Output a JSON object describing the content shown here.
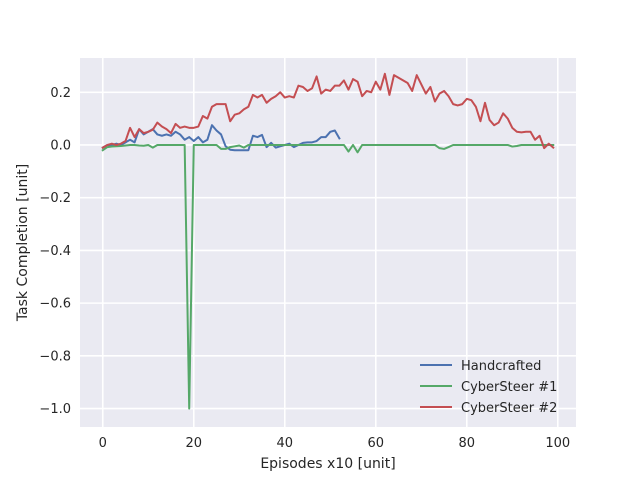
{
  "chart_data": {
    "type": "line",
    "title": "",
    "xlabel": "Episodes x10 [unit]",
    "ylabel": "Task Completion [unit]",
    "xlim": [
      -5,
      104
    ],
    "ylim": [
      -1.07,
      0.33
    ],
    "xticks": [
      0,
      20,
      40,
      60,
      80,
      100
    ],
    "yticks": [
      -1.0,
      -0.8,
      -0.6,
      -0.4,
      -0.2,
      0.0,
      0.2
    ],
    "xtick_labels": [
      "0",
      "20",
      "40",
      "60",
      "80",
      "100"
    ],
    "ytick_labels": [
      "−1.0",
      "−0.8",
      "−0.6",
      "−0.4",
      "−0.2",
      "0.0",
      "0.2"
    ],
    "grid": true,
    "legend_position": "lower-right",
    "series": [
      {
        "name": "Handcrafted",
        "color": "#4c72b0",
        "x": [
          0,
          1,
          2,
          3,
          4,
          5,
          6,
          7,
          8,
          9,
          10,
          11,
          12,
          13,
          14,
          15,
          16,
          17,
          18,
          19,
          20,
          21,
          22,
          23,
          24,
          25,
          26,
          27,
          28,
          29,
          30,
          31,
          32,
          33,
          34,
          35,
          36,
          37,
          38,
          39,
          40,
          41,
          42,
          43,
          44,
          45,
          46,
          47,
          48,
          49,
          50,
          51,
          52
        ],
        "values": [
          -0.01,
          0.0,
          0.0,
          0.005,
          0.0,
          0.01,
          0.02,
          0.01,
          0.06,
          0.04,
          0.05,
          0.06,
          0.04,
          0.035,
          0.04,
          0.035,
          0.05,
          0.04,
          0.02,
          0.03,
          0.015,
          0.03,
          0.01,
          0.02,
          0.075,
          0.055,
          0.04,
          -0.005,
          -0.018,
          -0.02,
          -0.02,
          -0.02,
          -0.02,
          0.035,
          0.03,
          0.038,
          -0.008,
          0.008,
          -0.01,
          -0.005,
          0.0,
          0.005,
          -0.008,
          0.0,
          0.008,
          0.01,
          0.01,
          0.015,
          0.03,
          0.03,
          0.05,
          0.055,
          0.025
        ]
      },
      {
        "name": "CyberSteer #1",
        "color": "#55a868",
        "x": [
          0,
          1,
          2,
          3,
          4,
          5,
          6,
          7,
          8,
          9,
          10,
          11,
          12,
          13,
          14,
          15,
          16,
          17,
          18,
          19,
          20,
          21,
          22,
          23,
          24,
          25,
          26,
          27,
          28,
          29,
          30,
          31,
          32,
          33,
          34,
          35,
          36,
          37,
          38,
          39,
          40,
          41,
          42,
          43,
          44,
          45,
          46,
          47,
          48,
          49,
          50,
          51,
          52,
          53,
          54,
          55,
          56,
          57,
          58,
          59,
          60,
          61,
          62,
          63,
          64,
          65,
          66,
          67,
          68,
          69,
          70,
          71,
          72,
          73,
          74,
          75,
          76,
          77,
          78,
          79,
          80,
          81,
          82,
          83,
          84,
          85,
          86,
          87,
          88,
          89,
          90,
          91,
          92,
          93,
          94,
          95,
          96,
          97,
          98,
          99
        ],
        "values": [
          -0.02,
          -0.008,
          -0.006,
          -0.005,
          -0.004,
          -0.002,
          0.0,
          0.0,
          -0.002,
          -0.003,
          0.0,
          -0.01,
          0.0,
          0.0,
          0.0,
          0.0,
          0.0,
          0.0,
          0.0,
          -1.0,
          0.0,
          0.0,
          0.0,
          0.0,
          0.0,
          0.0,
          -0.015,
          -0.015,
          -0.008,
          -0.005,
          -0.002,
          -0.01,
          0.0,
          0.0,
          0.0,
          0.0,
          0.0,
          0.0,
          0.0,
          0.0,
          0.0,
          0.0,
          0.0,
          0.0,
          0.0,
          0.0,
          0.0,
          0.0,
          0.0,
          0.0,
          0.0,
          0.0,
          0.0,
          0.0,
          -0.025,
          0.0,
          -0.028,
          0.0,
          0.0,
          0.0,
          0.0,
          0.0,
          0.0,
          0.0,
          0.0,
          0.0,
          0.0,
          0.0,
          0.0,
          0.0,
          0.0,
          0.0,
          0.0,
          0.0,
          -0.012,
          -0.015,
          -0.008,
          0.0,
          0.0,
          0.0,
          0.0,
          0.0,
          0.0,
          0.0,
          0.0,
          0.0,
          0.0,
          0.0,
          0.0,
          0.0,
          -0.006,
          -0.004,
          0.0,
          0.0,
          0.0,
          0.0,
          0.0,
          0.0,
          0.0,
          0.0
        ]
      },
      {
        "name": "CyberSteer #2",
        "color": "#c44e52",
        "x": [
          0,
          1,
          2,
          3,
          4,
          5,
          6,
          7,
          8,
          9,
          10,
          11,
          12,
          13,
          14,
          15,
          16,
          17,
          18,
          19,
          20,
          21,
          22,
          23,
          24,
          25,
          26,
          27,
          28,
          29,
          30,
          31,
          32,
          33,
          34,
          35,
          36,
          37,
          38,
          39,
          40,
          41,
          42,
          43,
          44,
          45,
          46,
          47,
          48,
          49,
          50,
          51,
          52,
          53,
          54,
          55,
          56,
          57,
          58,
          59,
          60,
          61,
          62,
          63,
          64,
          65,
          66,
          67,
          68,
          69,
          70,
          71,
          72,
          73,
          74,
          75,
          76,
          77,
          78,
          79,
          80,
          81,
          82,
          83,
          84,
          85,
          86,
          87,
          88,
          89,
          90,
          91,
          92,
          93,
          94,
          95,
          96,
          97,
          98,
          99
        ],
        "values": [
          -0.01,
          0.0,
          0.005,
          0.0,
          0.005,
          0.015,
          0.065,
          0.03,
          0.06,
          0.045,
          0.05,
          0.058,
          0.085,
          0.07,
          0.06,
          0.045,
          0.08,
          0.065,
          0.07,
          0.065,
          0.065,
          0.07,
          0.11,
          0.1,
          0.145,
          0.155,
          0.155,
          0.155,
          0.09,
          0.115,
          0.12,
          0.135,
          0.145,
          0.19,
          0.18,
          0.19,
          0.16,
          0.175,
          0.185,
          0.2,
          0.18,
          0.185,
          0.18,
          0.225,
          0.22,
          0.205,
          0.215,
          0.26,
          0.195,
          0.21,
          0.205,
          0.225,
          0.225,
          0.245,
          0.21,
          0.25,
          0.24,
          0.185,
          0.205,
          0.2,
          0.24,
          0.21,
          0.27,
          0.19,
          0.265,
          0.255,
          0.245,
          0.235,
          0.205,
          0.265,
          0.23,
          0.195,
          0.22,
          0.165,
          0.195,
          0.205,
          0.185,
          0.155,
          0.15,
          0.155,
          0.175,
          0.17,
          0.145,
          0.09,
          0.16,
          0.095,
          0.075,
          0.085,
          0.12,
          0.1,
          0.065,
          0.05,
          0.048,
          0.05,
          0.05,
          0.02,
          0.035,
          -0.012,
          0.005,
          -0.01
        ]
      }
    ]
  }
}
